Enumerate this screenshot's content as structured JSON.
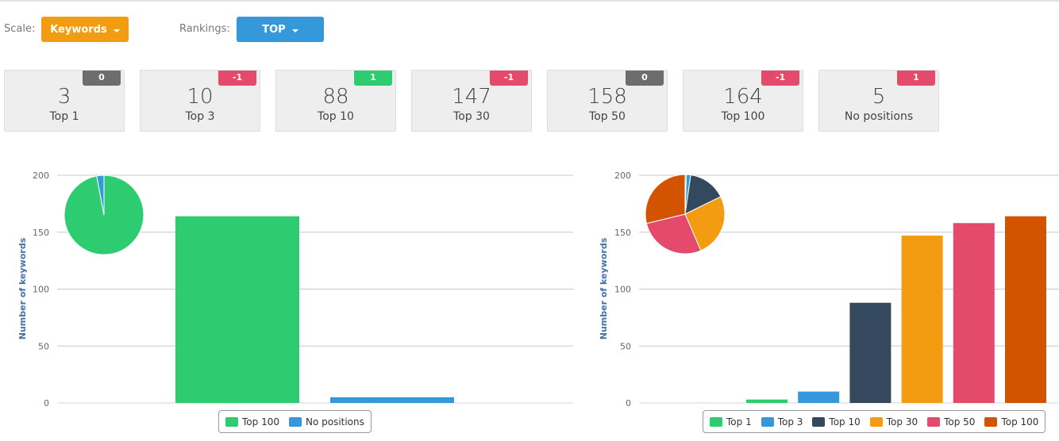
{
  "controls": {
    "scale_label": "Scale:",
    "scale_value": "Keywords",
    "scale_color": "#f39c12",
    "rankings_label": "Rankings:",
    "rankings_value": "TOP",
    "rankings_color": "#3498db"
  },
  "cards": [
    {
      "value": "3",
      "name": "Top 1",
      "delta": "0",
      "delta_color": "#6d6d6d"
    },
    {
      "value": "10",
      "name": "Top 3",
      "delta": "-1",
      "delta_color": "#e44a6c"
    },
    {
      "value": "88",
      "name": "Top 10",
      "delta": "1",
      "delta_color": "#2ecc71"
    },
    {
      "value": "147",
      "name": "Top 30",
      "delta": "-1",
      "delta_color": "#e44a6c"
    },
    {
      "value": "158",
      "name": "Top 50",
      "delta": "0",
      "delta_color": "#6d6d6d"
    },
    {
      "value": "164",
      "name": "Top 100",
      "delta": "-1",
      "delta_color": "#e44a6c"
    },
    {
      "value": "5",
      "name": "No positions",
      "delta": "1",
      "delta_color": "#e44a6c"
    }
  ],
  "chart_data": [
    {
      "type": "bar",
      "ylabel": "Number of keywords",
      "ylim": [
        0,
        200
      ],
      "yticks": [
        "0",
        "50",
        "100",
        "150",
        "200"
      ],
      "categories": [
        "Top 100",
        "No positions"
      ],
      "values": [
        164,
        5
      ],
      "colors": [
        "#2ecc71",
        "#3498db"
      ],
      "legend": "bottom",
      "inset_pie": true
    },
    {
      "type": "bar",
      "ylabel": "Number of keywords",
      "ylim": [
        0,
        200
      ],
      "yticks": [
        "0",
        "50",
        "100",
        "150",
        "200"
      ],
      "categories": [
        "Top 1",
        "Top 3",
        "Top 10",
        "Top 30",
        "Top 50",
        "Top 100"
      ],
      "values": [
        3,
        10,
        88,
        147,
        158,
        164
      ],
      "colors": [
        "#2ecc71",
        "#3498db",
        "#34495e",
        "#f39c12",
        "#e44a6c",
        "#d35400"
      ],
      "legend": "bottom",
      "inset_pie": true
    }
  ]
}
